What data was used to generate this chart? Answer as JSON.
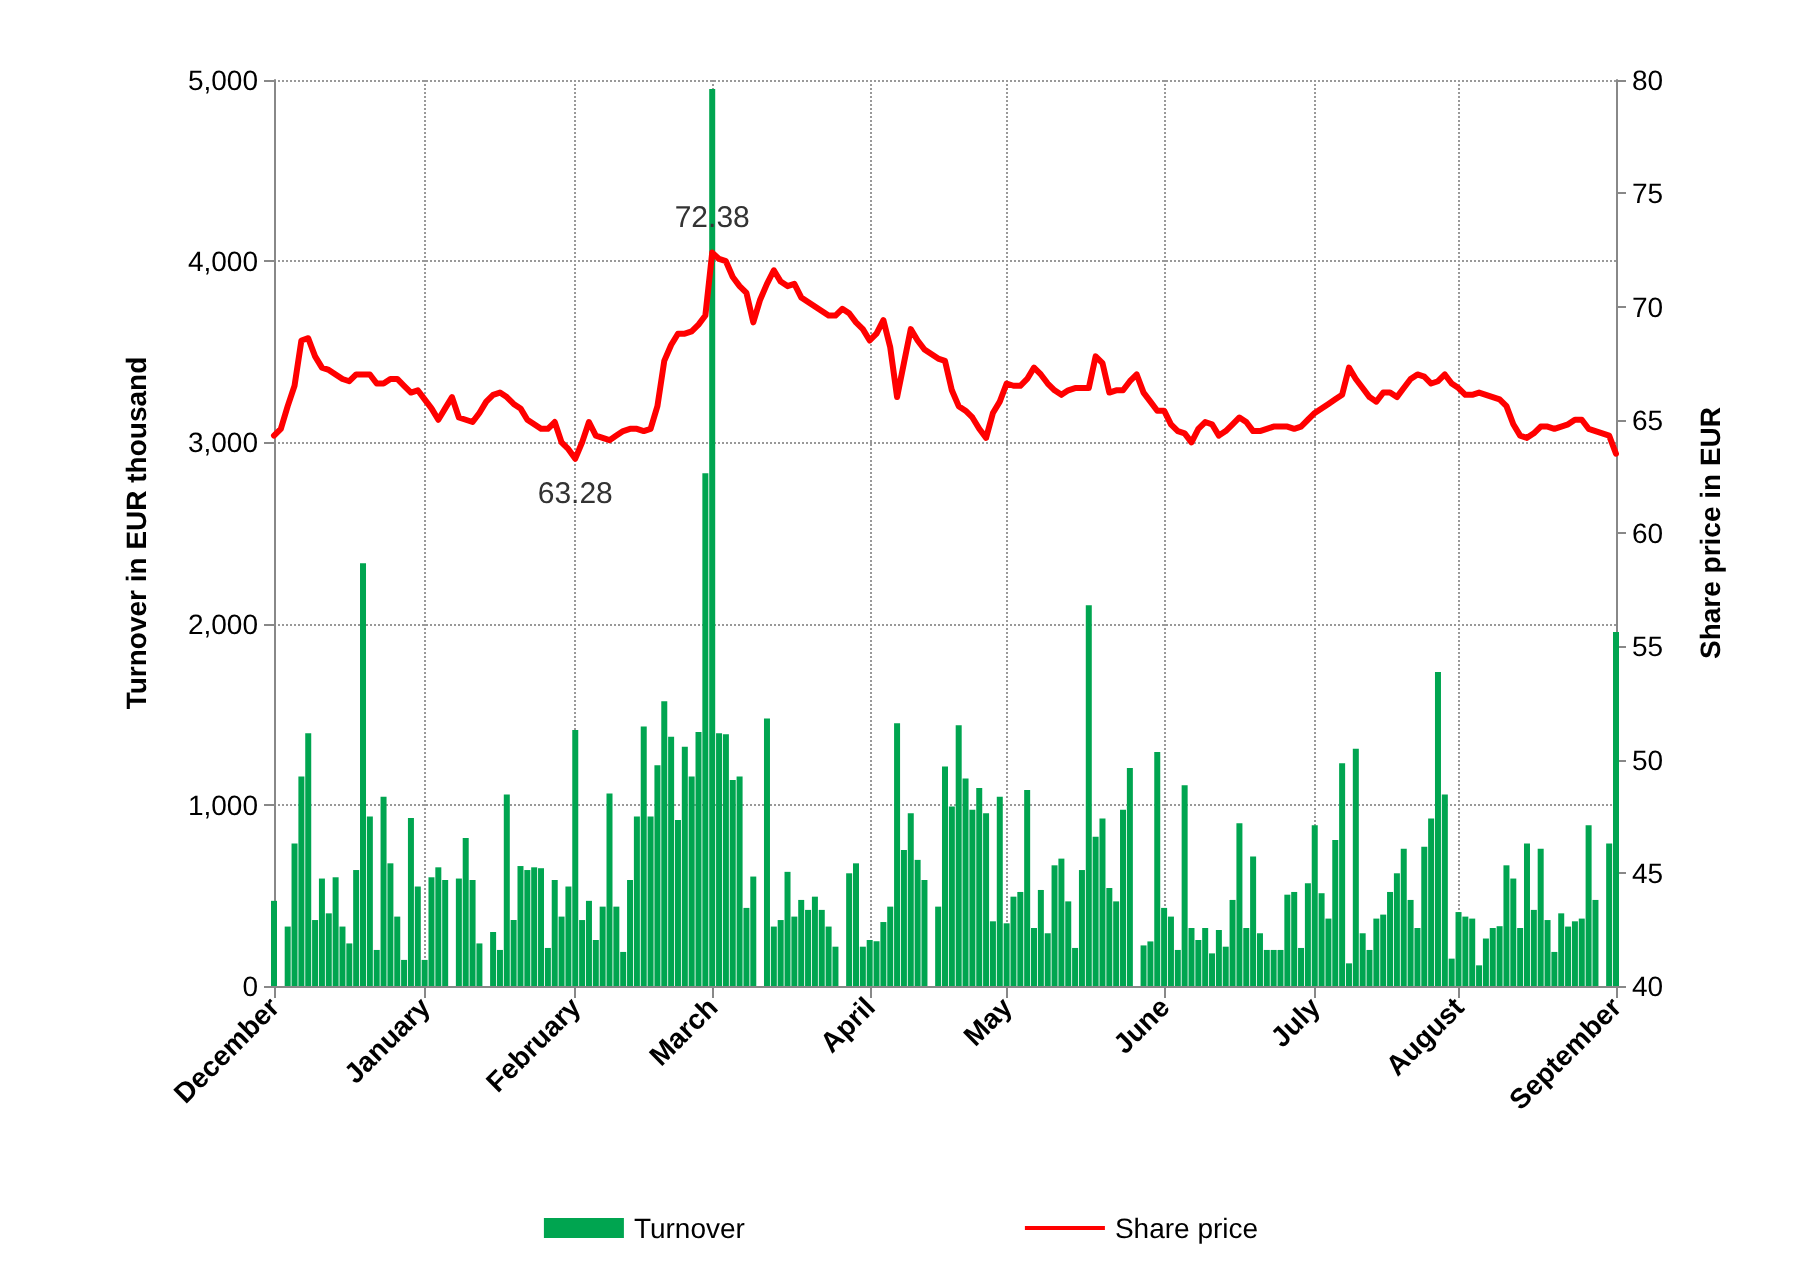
{
  "chart_data": {
    "type": "bar",
    "categories": [
      "December",
      null,
      null,
      null,
      null,
      null,
      null,
      null,
      null,
      null,
      null,
      null,
      null,
      null,
      null,
      null,
      null,
      null,
      null,
      null,
      null,
      null,
      "January",
      null,
      null,
      null,
      null,
      null,
      null,
      null,
      null,
      null,
      null,
      null,
      null,
      null,
      null,
      null,
      null,
      null,
      null,
      null,
      null,
      null,
      "February",
      null,
      null,
      null,
      null,
      null,
      null,
      null,
      null,
      null,
      null,
      null,
      null,
      null,
      null,
      null,
      null,
      null,
      null,
      null,
      "March",
      null,
      null,
      null,
      null,
      null,
      null,
      null,
      null,
      null,
      null,
      null,
      null,
      null,
      null,
      null,
      null,
      null,
      null,
      null,
      null,
      null,
      null,
      "April",
      null,
      null,
      null,
      null,
      null,
      null,
      null,
      null,
      null,
      null,
      null,
      null,
      null,
      null,
      null,
      null,
      null,
      null,
      null,
      "May",
      null,
      null,
      null,
      null,
      null,
      null,
      null,
      null,
      null,
      null,
      null,
      null,
      null,
      null,
      null,
      null,
      null,
      null,
      null,
      null,
      null,
      null,
      "June",
      null,
      null,
      null,
      null,
      null,
      null,
      null,
      null,
      null,
      null,
      null,
      null,
      null,
      null,
      null,
      null,
      null,
      null,
      null,
      null,
      null,
      "July",
      null,
      null,
      null,
      null,
      null,
      null,
      null,
      null,
      null,
      null,
      null,
      null,
      null,
      null,
      null,
      null,
      null,
      null,
      null,
      null,
      "August",
      null,
      null,
      null,
      null,
      null,
      null,
      null,
      null,
      null,
      null,
      null,
      null,
      null,
      null,
      null,
      null,
      null,
      null,
      null,
      null,
      null,
      null,
      "September"
    ],
    "series": [
      {
        "name": "Turnover",
        "color": "#00a550",
        "values": [
          470,
          null,
          328,
          787,
          1156,
          1395,
          364,
          593,
          401,
          600,
          328,
          235,
          640,
          2333,
          935,
          199,
          1045,
          677,
          383,
          144,
          927,
          549,
          144,
          600,
          655,
          585,
          null,
          593,
          817,
          585,
          235,
          null,
          298,
          199,
          1057,
          364,
          662,
          640,
          655,
          650,
          210,
          585,
          383,
          549,
          1413,
          364,
          470,
          254,
          438,
          1063,
          438,
          188,
          585,
          935,
          1432,
          935,
          1218,
          1571,
          1376,
          916,
          1321,
          1156,
          1402,
          2830,
          4950,
          1395,
          1390,
          1137,
          1156,
          431,
          604,
          null,
          1476,
          328,
          364,
          630,
          383,
          475,
          420,
          493,
          420,
          328,
          217,
          null,
          622,
          677,
          217,
          254,
          247,
          353,
          438,
          1450,
          751,
          953,
          696,
          585,
          null,
          438,
          1211,
          990,
          1439,
          1145,
          972,
          1093,
          953,
          357,
          1045,
          346,
          493,
          519,
          1082,
          320,
          530,
          291,
          666,
          703,
          467,
          210,
          640,
          2101,
          824,
          924,
          541,
          467,
          972,
          1203,
          null,
          224,
          246,
          1292,
          431,
          383,
          199,
          1108,
          320,
          254,
          320,
          180,
          309,
          217,
          475,
          898,
          320,
          714,
          291,
          199,
          199,
          199,
          504,
          519,
          210,
          567,
          887,
          512,
          372,
          806,
          1229,
          125,
          1310,
          291,
          199,
          372,
          394,
          519,
          622,
          758,
          475,
          320,
          769,
          924,
          1733,
          1057,
          151,
          408,
          383,
          372,
          114,
          262,
          320,
          330,
          666,
          593,
          320,
          787,
          420,
          758,
          364,
          188,
          401,
          328,
          357,
          372,
          887,
          475,
          null,
          787,
          1954
        ]
      },
      {
        "name": "Share price",
        "type": "line",
        "axis": "y2",
        "color": "#ff0000",
        "value_labels": [
          null,
          null,
          null,
          null,
          null,
          null,
          null,
          null,
          null,
          null,
          null,
          null,
          null,
          null,
          null,
          null,
          null,
          null,
          null,
          null,
          null,
          null,
          null,
          null,
          null,
          null,
          null,
          null,
          null,
          null,
          null,
          null,
          null,
          null,
          null,
          null,
          null,
          null,
          null,
          null,
          null,
          null,
          null,
          null,
          "63.28",
          null,
          null,
          null,
          null,
          null,
          null,
          null,
          null,
          null,
          null,
          null,
          null,
          null,
          null,
          null,
          null,
          null,
          null,
          null,
          "72.38",
          null,
          null,
          null,
          null,
          null,
          null,
          null,
          null,
          null,
          null,
          null,
          null,
          null,
          null,
          null,
          null,
          null,
          null,
          null,
          null,
          null,
          null,
          null,
          null,
          null,
          null,
          null,
          null,
          null,
          null,
          null,
          null,
          null,
          null,
          null,
          null,
          null,
          null,
          null,
          null,
          null,
          null,
          null,
          null,
          null,
          null,
          null,
          null,
          null,
          null,
          null,
          null,
          null,
          null,
          null,
          null,
          null,
          null,
          null,
          null,
          null,
          null,
          null,
          null,
          null,
          null,
          null,
          null,
          null,
          null,
          null,
          null,
          null,
          null,
          null,
          null,
          null,
          null,
          null,
          null,
          null,
          null,
          null,
          null,
          null,
          null,
          null,
          null,
          null,
          null,
          null,
          null,
          null,
          null,
          null,
          null,
          null,
          null,
          null,
          null,
          null,
          null,
          null,
          null,
          null,
          null,
          null,
          null,
          null,
          null,
          null,
          null,
          null,
          null,
          null,
          null,
          null,
          null,
          null,
          null,
          null,
          null,
          null,
          null,
          null,
          null,
          null,
          null,
          null,
          null,
          null,
          null
        ],
        "values": [
          64.3,
          64.6,
          65.6,
          66.5,
          68.5,
          68.6,
          67.8,
          67.3,
          67.2,
          67.0,
          66.8,
          66.7,
          67.0,
          67.0,
          67.0,
          66.6,
          66.6,
          66.8,
          66.8,
          66.5,
          66.2,
          66.3,
          65.9,
          65.5,
          65.0,
          65.5,
          66.0,
          65.1,
          65.0,
          64.9,
          65.3,
          65.8,
          66.1,
          66.2,
          66.0,
          65.7,
          65.5,
          65.0,
          64.8,
          64.6,
          64.6,
          64.9,
          64.0,
          63.7,
          63.28,
          64.0,
          64.9,
          64.3,
          64.2,
          64.1,
          64.3,
          64.5,
          64.6,
          64.6,
          64.5,
          64.6,
          65.6,
          67.6,
          68.3,
          68.8,
          68.8,
          68.9,
          69.2,
          69.6,
          72.38,
          72.1,
          72.0,
          71.3,
          70.9,
          70.6,
          69.3,
          70.3,
          71.0,
          71.6,
          71.1,
          70.9,
          71.0,
          70.4,
          70.2,
          70.0,
          69.8,
          69.6,
          69.6,
          69.9,
          69.7,
          69.3,
          69.0,
          68.5,
          68.8,
          69.4,
          68.2,
          66.0,
          67.5,
          69.0,
          68.5,
          68.1,
          67.9,
          67.7,
          67.6,
          66.3,
          65.6,
          65.4,
          65.1,
          64.6,
          64.2,
          65.3,
          65.8,
          66.6,
          66.5,
          66.5,
          66.8,
          67.3,
          67.0,
          66.6,
          66.3,
          66.1,
          66.3,
          66.4,
          66.4,
          66.4,
          67.8,
          67.5,
          66.2,
          66.3,
          66.3,
          66.7,
          67.0,
          66.2,
          65.8,
          65.4,
          65.4,
          64.8,
          64.5,
          64.4,
          64.0,
          64.6,
          64.9,
          64.8,
          64.3,
          64.5,
          64.8,
          65.1,
          64.9,
          64.5,
          64.5,
          64.6,
          64.7,
          64.7,
          64.7,
          64.6,
          64.7,
          65.0,
          65.3,
          65.5,
          65.7,
          65.9,
          66.1,
          67.3,
          66.8,
          66.4,
          66.0,
          65.8,
          66.2,
          66.2,
          66.0,
          66.4,
          66.8,
          67.0,
          66.9,
          66.6,
          66.7,
          67.0,
          66.6,
          66.4,
          66.1,
          66.1,
          66.2,
          66.1,
          66.0,
          65.9,
          65.6,
          64.8,
          64.3,
          64.2,
          64.4,
          64.7,
          64.7,
          64.6,
          64.7,
          64.8,
          65.0,
          65.0,
          64.6,
          64.5,
          64.4,
          64.3,
          63.5
        ]
      }
    ],
    "ylabel": "Turnover in EUR thousand",
    "y2label": "Share price in EUR",
    "ylim": [
      0,
      5000
    ],
    "yticks": [
      0,
      {
        "value": 1000,
        "label": "1,000"
      },
      {
        "value": 2000,
        "label": "2,000"
      },
      {
        "value": 3000,
        "label": "3,000"
      },
      {
        "value": 4000,
        "label": "4,000"
      },
      {
        "value": 5000,
        "label": "5,000"
      }
    ],
    "y2lim": [
      40,
      80
    ],
    "y2ticks": [
      40,
      45,
      50,
      55,
      60,
      65,
      70,
      75,
      80
    ],
    "grid": true,
    "legend": "bottom",
    "marker": "none",
    "line_style": "solid"
  }
}
